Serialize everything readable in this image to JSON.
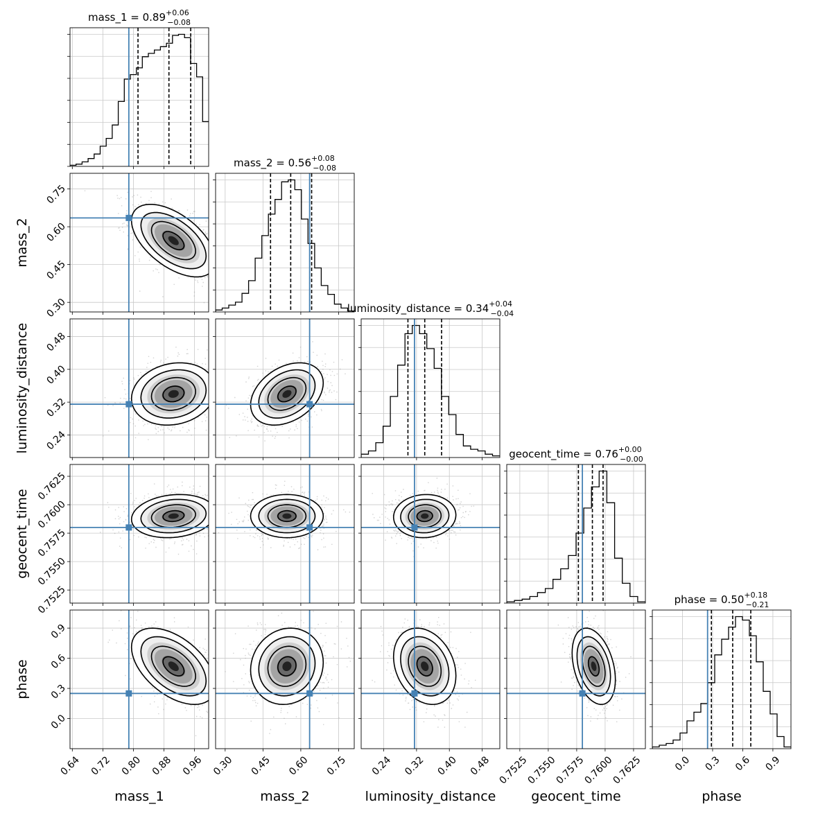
{
  "chart_data": {
    "type": "corner",
    "parameters": [
      "mass_1",
      "mass_2",
      "luminosity_distance",
      "geocent_time",
      "phase"
    ],
    "axis_labels": [
      "mass_1",
      "mass_2",
      "luminosity_distance",
      "geocent_time",
      "phase"
    ],
    "ranges": [
      [
        0.634,
        0.997
      ],
      [
        0.262,
        0.812
      ],
      [
        0.185,
        0.523
      ],
      [
        0.75135,
        0.76354
      ],
      [
        -0.3,
        1.08
      ]
    ],
    "ticks": [
      [
        0.64,
        0.72,
        0.8,
        0.88,
        0.96
      ],
      [
        0.3,
        0.45,
        0.6,
        0.75
      ],
      [
        0.24,
        0.32,
        0.4,
        0.48
      ],
      [
        0.7525,
        0.755,
        0.7575,
        0.76,
        0.7625
      ],
      [
        0.0,
        0.3,
        0.6,
        0.9
      ]
    ],
    "tick_labels": [
      [
        "0.64",
        "0.72",
        "0.80",
        "0.88",
        "0.96"
      ],
      [
        "0.30",
        "0.45",
        "0.60",
        "0.75"
      ],
      [
        "0.24",
        "0.32",
        "0.40",
        "0.48"
      ],
      [
        "0.7525",
        "0.7550",
        "0.7575",
        "0.7600",
        "0.7625"
      ],
      [
        "0.0",
        "0.3",
        "0.6",
        "0.9"
      ]
    ],
    "y_tick_labels": [
      null,
      [
        "0.30",
        "0.45",
        "0.60",
        "0.75"
      ],
      [
        "0.24",
        "0.32",
        "0.40",
        "0.48"
      ],
      [
        "0.7525",
        "0.7550",
        "0.7575",
        "0.7600",
        "0.7625"
      ],
      [
        "0.0",
        "0.3",
        "0.6",
        "0.9"
      ]
    ],
    "titles": [
      {
        "name": "mass_1",
        "value": "0.89",
        "plus": "+0.06",
        "minus": "−0.08"
      },
      {
        "name": "mass_2",
        "value": "0.56",
        "plus": "+0.08",
        "minus": "−0.08"
      },
      {
        "name": "luminosity_distance",
        "value": "0.34",
        "plus": "+0.04",
        "minus": "−0.04"
      },
      {
        "name": "geocent_time",
        "value": "0.76",
        "plus": "+0.00",
        "minus": "−0.00"
      },
      {
        "name": "phase",
        "value": "0.50",
        "plus": "+0.18",
        "minus": "−0.21"
      }
    ],
    "truths": [
      0.788,
      0.635,
      0.315,
      0.758,
      0.25
    ],
    "quantiles": [
      [
        0.812,
        0.893,
        0.95
      ],
      [
        0.48,
        0.56,
        0.643
      ],
      [
        0.299,
        0.34,
        0.381
      ],
      [
        0.75765,
        0.75888,
        0.75982
      ],
      [
        0.288,
        0.5,
        0.68
      ]
    ],
    "means": [
      0.905,
      0.545,
      0.34,
      0.759,
      0.52
    ],
    "sigmas": [
      0.055,
      0.072,
      0.038,
      0.00095,
      0.19
    ],
    "correlations": [
      [
        1.0,
        -0.55,
        0.15,
        0.15,
        -0.5
      ],
      [
        -0.55,
        1.0,
        0.35,
        0.0,
        0.1
      ],
      [
        0.15,
        0.35,
        1.0,
        0.05,
        -0.25
      ],
      [
        0.15,
        0.0,
        0.05,
        1.0,
        -0.35
      ],
      [
        -0.5,
        0.1,
        -0.25,
        -0.35,
        1.0
      ]
    ],
    "histograms": [
      [
        1,
        2,
        4,
        7,
        11,
        18,
        25,
        37,
        58,
        78,
        82,
        88,
        98,
        101,
        104,
        107,
        110,
        117,
        118,
        115,
        92,
        80,
        40
      ],
      [
        2,
        4,
        7,
        10,
        19,
        32,
        55,
        78,
        100,
        115,
        133,
        135,
        125,
        95,
        70,
        45,
        27,
        18,
        8,
        4,
        1
      ],
      [
        2,
        4,
        9,
        19,
        37,
        56,
        75,
        80,
        75,
        66,
        54,
        37,
        26,
        14,
        7,
        5,
        4,
        2,
        1
      ],
      [
        1,
        2,
        3,
        5,
        8,
        11,
        18,
        26,
        36,
        53,
        72,
        88,
        100,
        76,
        34,
        15,
        5,
        1
      ],
      [
        1,
        2,
        3,
        5,
        9,
        16,
        21,
        26,
        38,
        54,
        63,
        70,
        76,
        74,
        65,
        50,
        33,
        20,
        7,
        1
      ]
    ],
    "truth_color": "#4682b4",
    "grid": true
  }
}
